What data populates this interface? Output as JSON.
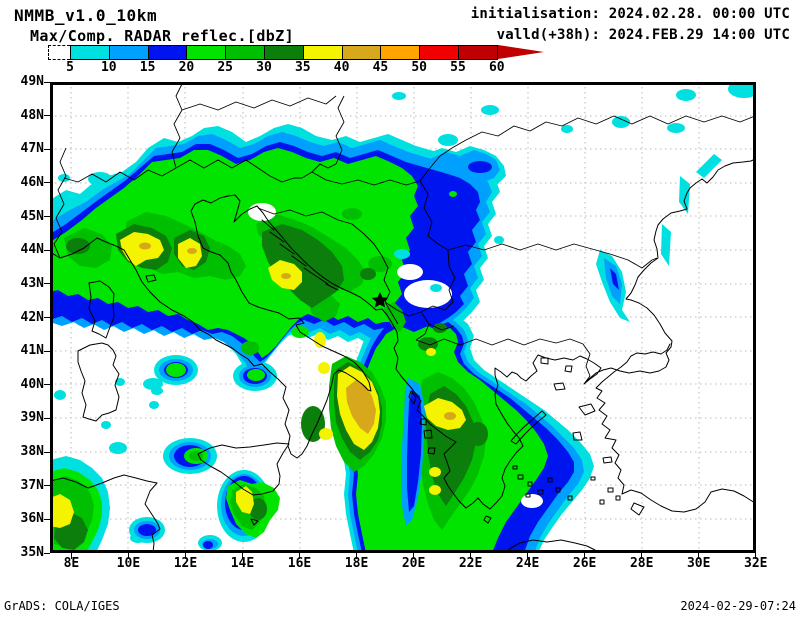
{
  "header": {
    "title": "NMMB_v1.0_10km",
    "subtitle": "Max/Comp. RADAR reflec.[dbZ]",
    "init_line": "initialisation: 2024.02.28. 00:00 UTC",
    "valid_line": "valld(+38h): 2024.FEB.29 14:00 UTC"
  },
  "colorbar": {
    "unit": "dbZ",
    "tick_labels": [
      "5",
      "10",
      "15",
      "20",
      "25",
      "30",
      "35",
      "40",
      "45",
      "50",
      "55",
      "60"
    ],
    "segment_colors": [
      "#00e0e0",
      "#00a0ff",
      "#0014f0",
      "#00e400",
      "#00be00",
      "#0c7e0c",
      "#f4f400",
      "#d8a81c",
      "#ffa400",
      "#f20000",
      "#c00000"
    ],
    "overflow_arrow_color": "#c00000",
    "below_min_style": "dashed-open-segment"
  },
  "axes": {
    "lat_labels": [
      "49N",
      "48N",
      "47N",
      "46N",
      "45N",
      "44N",
      "43N",
      "42N",
      "41N",
      "40N",
      "39N",
      "38N",
      "37N",
      "36N",
      "35N"
    ],
    "lon_labels": [
      "8E",
      "10E",
      "12E",
      "14E",
      "16E",
      "18E",
      "20E",
      "22E",
      "24E",
      "26E",
      "28E",
      "30E",
      "32E"
    ]
  },
  "map": {
    "marker": {
      "symbol": "star",
      "color": "#000000"
    },
    "grid_color": "#b8b8b8",
    "coast_color": "#000000"
  },
  "footer": {
    "left": "GrADS: COLA/IGES",
    "right": "2024-02-29-07:24"
  }
}
